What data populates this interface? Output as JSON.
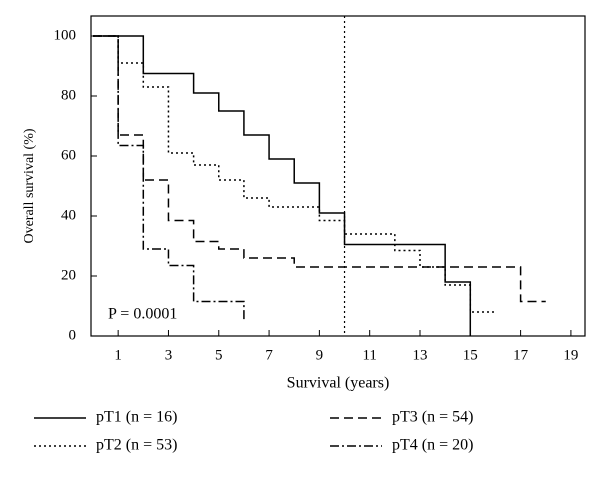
{
  "chart_data": {
    "type": "step",
    "x_label": "Survival (years)",
    "y_label": "Overall survival (%)",
    "annotation": "P = 0.0001",
    "xlim": [
      0,
      19.6
    ],
    "xticks": [
      1,
      3,
      5,
      7,
      9,
      11,
      13,
      15,
      17,
      19
    ],
    "ylim": [
      0,
      100
    ],
    "yticks": [
      0,
      20,
      40,
      60,
      80,
      100
    ],
    "vline": 10,
    "series": [
      {
        "name": "pT1 (n = 16)",
        "color": "#000000",
        "dash": "none",
        "x": [
          0,
          2,
          4,
          5,
          6,
          7,
          8,
          9,
          10,
          14,
          15
        ],
        "values": [
          100,
          87.5,
          81,
          75,
          67,
          59,
          51,
          41,
          30.5,
          18,
          0
        ]
      },
      {
        "name": "pT2 (n = 53)",
        "color": "#000000",
        "dash": "2 3",
        "x": [
          0,
          1,
          2,
          3,
          4,
          5,
          6,
          7,
          9,
          10,
          12,
          13,
          14,
          15,
          16
        ],
        "values": [
          100,
          91,
          83,
          61,
          57,
          52,
          46,
          43,
          38.5,
          34,
          28.5,
          23,
          17,
          8,
          8
        ]
      },
      {
        "name": "pT3 (n = 54)",
        "color": "#000000",
        "dash": "9 5",
        "x": [
          0,
          1,
          2,
          3,
          4,
          5,
          6,
          8,
          17,
          18
        ],
        "values": [
          100,
          67,
          52,
          38.5,
          31.5,
          29,
          26,
          23,
          11.5,
          11.5
        ]
      },
      {
        "name": "pT4 (n = 20)",
        "color": "#000000",
        "dash": "9 3 2 3",
        "x": [
          0,
          1,
          2,
          3,
          4,
          6
        ],
        "values": [
          100,
          63.5,
          29,
          23.5,
          11.5,
          5.5
        ]
      }
    ]
  }
}
